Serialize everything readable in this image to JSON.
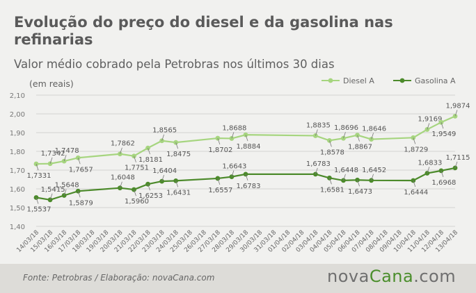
{
  "title": "Evolução do preço do diesel e da gasolina nas refinarias",
  "subtitle": "Valor médio cobrado pela Petrobras nos últimos 30 dias",
  "unit_note": "(em reais)",
  "footer": {
    "source": "Fonte:  Petrobras  / Elaboração:  novaCana.com",
    "brand_prefix": "nova",
    "brand_name": "Cana",
    "brand_suffix": ".com"
  },
  "colors": {
    "diesel": "#a6d57f",
    "gasolina": "#4c8a2b",
    "grid": "#d2d2d2",
    "text": "#666666"
  },
  "chart_data": {
    "type": "line",
    "x": [
      "14/03/18",
      "15/03/18",
      "16/03/18",
      "17/03/18",
      "18/03/18",
      "19/03/18",
      "20/03/18",
      "21/03/18",
      "22/03/18",
      "23/03/18",
      "24/03/18",
      "25/03/18",
      "26/03/18",
      "27/03/18",
      "28/03/18",
      "29/03/18",
      "30/03/18",
      "31/03/18",
      "01/04/18",
      "02/04/18",
      "03/04/18",
      "04/04/18",
      "05/04/18",
      "06/04/18",
      "07/04/18",
      "08/04/18",
      "09/04/18",
      "10/04/18",
      "11/04/18",
      "12/04/18",
      "13/04/18"
    ],
    "ylim": [
      1.4,
      2.1
    ],
    "yticks": [
      "2,10",
      "2,00",
      "1,90",
      "1,80",
      "1,70",
      "1,60",
      "1,50",
      "1,40"
    ],
    "ytick_values": [
      2.1,
      2.0,
      1.9,
      1.8,
      1.7,
      1.6,
      1.5,
      1.4
    ],
    "grid": true,
    "legend_position": "top-right",
    "series": [
      {
        "name": "Diesel A",
        "color": "#a6d57f",
        "points": [
          {
            "i": 0,
            "y": 1.7331,
            "label": "1,7331",
            "pos": "below"
          },
          {
            "i": 1,
            "y": 1.7342,
            "label": "1,7342",
            "pos": "above"
          },
          {
            "i": 2,
            "y": 1.7478,
            "label": "1,7478",
            "pos": "above"
          },
          {
            "i": 3,
            "y": 1.7657,
            "label": "1,7657",
            "pos": "below"
          },
          {
            "i": 6,
            "y": 1.7862,
            "label": "1,7862",
            "pos": "above"
          },
          {
            "i": 7,
            "y": 1.7751,
            "label": "1,7751",
            "pos": "below"
          },
          {
            "i": 8,
            "y": 1.8181,
            "label": "1,8181",
            "pos": "below"
          },
          {
            "i": 9,
            "y": 1.8565,
            "label": "1,8565",
            "pos": "above"
          },
          {
            "i": 10,
            "y": 1.8475,
            "label": "1,8475",
            "pos": "below"
          },
          {
            "i": 13,
            "y": 1.8702,
            "label": "1,8702",
            "pos": "below"
          },
          {
            "i": 14,
            "y": 1.8688,
            "label": "1,8688",
            "pos": "above"
          },
          {
            "i": 15,
            "y": 1.8884,
            "label": "1,8884",
            "pos": "below"
          },
          {
            "i": 20,
            "y": 1.8835,
            "label": "1,8835",
            "pos": "above"
          },
          {
            "i": 21,
            "y": 1.8578,
            "label": "1,8578",
            "pos": "below"
          },
          {
            "i": 22,
            "y": 1.8696,
            "label": "1,8696",
            "pos": "above"
          },
          {
            "i": 23,
            "y": 1.8867,
            "label": "1,8867",
            "pos": "below"
          },
          {
            "i": 24,
            "y": 1.8646,
            "label": "1,8646",
            "pos": "above"
          },
          {
            "i": 27,
            "y": 1.8729,
            "label": "1,8729",
            "pos": "below"
          },
          {
            "i": 28,
            "y": 1.9169,
            "label": "1,9169",
            "pos": "above"
          },
          {
            "i": 29,
            "y": 1.9549,
            "label": "1,9549",
            "pos": "below"
          },
          {
            "i": 30,
            "y": 1.9874,
            "label": "1,9874",
            "pos": "above"
          }
        ]
      },
      {
        "name": "Gasolina A",
        "color": "#4c8a2b",
        "points": [
          {
            "i": 0,
            "y": 1.5537,
            "label": "1,5537",
            "pos": "below"
          },
          {
            "i": 1,
            "y": 1.5415,
            "label": "1,5415",
            "pos": "above"
          },
          {
            "i": 2,
            "y": 1.5648,
            "label": "1,5648",
            "pos": "above"
          },
          {
            "i": 3,
            "y": 1.5879,
            "label": "1,5879",
            "pos": "below"
          },
          {
            "i": 6,
            "y": 1.6048,
            "label": "1,6048",
            "pos": "above"
          },
          {
            "i": 7,
            "y": 1.596,
            "label": "1,5960",
            "pos": "below"
          },
          {
            "i": 8,
            "y": 1.6253,
            "label": "1,6253",
            "pos": "below"
          },
          {
            "i": 9,
            "y": 1.6404,
            "label": "1,6404",
            "pos": "above"
          },
          {
            "i": 10,
            "y": 1.6431,
            "label": "1,6431",
            "pos": "below"
          },
          {
            "i": 13,
            "y": 1.6557,
            "label": "1,6557",
            "pos": "below"
          },
          {
            "i": 14,
            "y": 1.6643,
            "label": "1,6643",
            "pos": "above"
          },
          {
            "i": 15,
            "y": 1.6783,
            "label": "1,6783",
            "pos": "below"
          },
          {
            "i": 20,
            "y": 1.6783,
            "label": "1,6783",
            "pos": "above"
          },
          {
            "i": 21,
            "y": 1.6581,
            "label": "1,6581",
            "pos": "below"
          },
          {
            "i": 22,
            "y": 1.6448,
            "label": "1,6448",
            "pos": "above"
          },
          {
            "i": 23,
            "y": 1.6473,
            "label": "1,6473",
            "pos": "below"
          },
          {
            "i": 24,
            "y": 1.6452,
            "label": "1,6452",
            "pos": "above"
          },
          {
            "i": 27,
            "y": 1.6444,
            "label": "1,6444",
            "pos": "below"
          },
          {
            "i": 28,
            "y": 1.6833,
            "label": "1,6833",
            "pos": "above"
          },
          {
            "i": 29,
            "y": 1.6968,
            "label": "1,6968",
            "pos": "below"
          },
          {
            "i": 30,
            "y": 1.7115,
            "label": "1,7115",
            "pos": "above"
          }
        ]
      }
    ]
  }
}
